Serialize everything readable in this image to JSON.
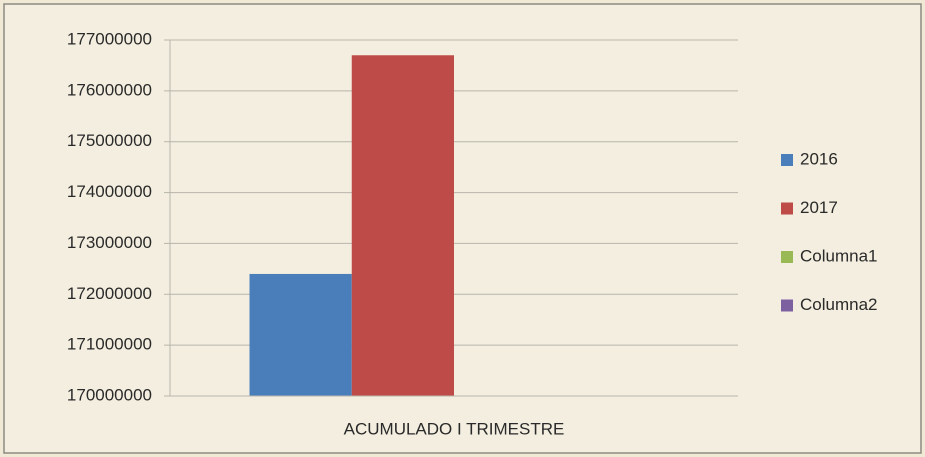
{
  "chart_data": {
    "type": "bar",
    "categories": [
      "ACUMULADO I TRIMESTRE"
    ],
    "series": [
      {
        "name": "2016",
        "color": "#4a7ebb",
        "values": [
          172400000
        ]
      },
      {
        "name": "2017",
        "color": "#be4b48",
        "values": [
          176700000
        ]
      },
      {
        "name": "Columna1",
        "color": "#98b954",
        "values": [
          null
        ]
      },
      {
        "name": "Columna2",
        "color": "#7d60a0",
        "values": [
          null
        ]
      }
    ],
    "ylim": [
      170000000,
      177000000
    ],
    "yticks": [
      170000000,
      171000000,
      172000000,
      173000000,
      174000000,
      175000000,
      176000000,
      177000000
    ],
    "grid": true,
    "legend": "right"
  }
}
